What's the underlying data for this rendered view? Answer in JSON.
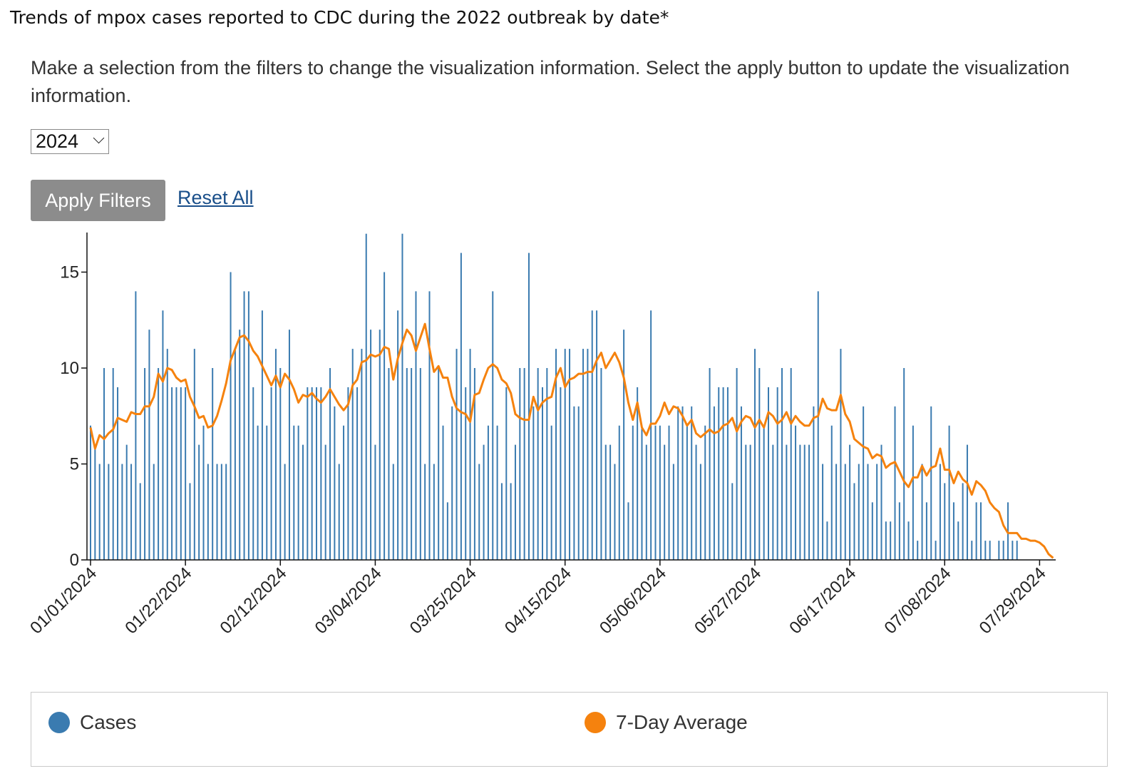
{
  "page": {
    "title": "Trends of mpox cases reported to CDC during the 2022 outbreak by date*",
    "instructions": "Make a selection from the filters to change the visualization information. Select the apply button to update the visualization information."
  },
  "filters": {
    "year_value": "2024",
    "apply_label": "Apply Filters",
    "reset_label": "Reset All"
  },
  "legend": {
    "cases_label": "Cases",
    "avg_label": "7-Day Average"
  },
  "colors": {
    "cases": "#3a7bb0",
    "average": "#f5820e"
  },
  "chart_data": {
    "type": "bar",
    "title": "Trends of mpox cases reported to CDC during the 2022 outbreak by date*",
    "xlabel": "",
    "ylabel": "",
    "ylim": [
      0,
      17
    ],
    "y_ticks": [
      0,
      5,
      10,
      15
    ],
    "x_tick_labels": [
      "01/01/2024",
      "01/22/2024",
      "02/12/2024",
      "03/04/2024",
      "03/25/2024",
      "04/15/2024",
      "05/06/2024",
      "05/27/2024",
      "06/17/2024",
      "07/08/2024",
      "07/29/2024"
    ],
    "start_date": "01/01/2024",
    "series": [
      {
        "name": "Cases",
        "type": "bar",
        "values": [
          7,
          6,
          5,
          10,
          5,
          10,
          9,
          5,
          6,
          5,
          14,
          4,
          10,
          12,
          5,
          10,
          13,
          11,
          9,
          9,
          9,
          9,
          4,
          11,
          6,
          7,
          5,
          10,
          5,
          5,
          5,
          15,
          11,
          12,
          14,
          14,
          9,
          7,
          13,
          7,
          9,
          11,
          10,
          5,
          12,
          7,
          7,
          6,
          9,
          9,
          9,
          9,
          6,
          10,
          8,
          5,
          7,
          9,
          11,
          9,
          11,
          17,
          12,
          6,
          12,
          15,
          10,
          5,
          13,
          17,
          10,
          10,
          14,
          10,
          5,
          14,
          5,
          10,
          7,
          3,
          8,
          11,
          16,
          9,
          11,
          10,
          5,
          6,
          7,
          14,
          7,
          4,
          9,
          4,
          6,
          10,
          10,
          16,
          8,
          10,
          9,
          10,
          7,
          11,
          9,
          11,
          11,
          8,
          8,
          11,
          11,
          13,
          13,
          10,
          6,
          6,
          5,
          7,
          12,
          3,
          7,
          9,
          7,
          6,
          13,
          7,
          7,
          6,
          7,
          5,
          8,
          8,
          7,
          8,
          6,
          5,
          7,
          10,
          8,
          9,
          9,
          9,
          4,
          10,
          8,
          6,
          6,
          11,
          10,
          7,
          9,
          6,
          9,
          10,
          6,
          10,
          7,
          6,
          6,
          6,
          8,
          14,
          5,
          2,
          7,
          5,
          11,
          5,
          6,
          4,
          5,
          8,
          5,
          3,
          5,
          6,
          2,
          2,
          8,
          3,
          10,
          2,
          7,
          1,
          5,
          3,
          8,
          1,
          5,
          4,
          7,
          3,
          2,
          4,
          6,
          1,
          3,
          3,
          1,
          1,
          0,
          1,
          1,
          3,
          1,
          1,
          0,
          0,
          0
        ]
      },
      {
        "name": "7-Day Average",
        "type": "line",
        "values": [
          6.9,
          5.8,
          6.5,
          6.3,
          6.6,
          6.8,
          7.4,
          7.3,
          7.2,
          7.7,
          7.6,
          7.6,
          8.0,
          8.0,
          8.5,
          9.7,
          9.3,
          10.0,
          9.9,
          9.5,
          9.3,
          9.4,
          8.5,
          8.0,
          7.4,
          7.5,
          6.9,
          7.0,
          7.5,
          8.3,
          9.2,
          10.4,
          11.0,
          11.6,
          11.7,
          11.4,
          10.9,
          10.6,
          10.1,
          9.6,
          9.1,
          9.6,
          9.0,
          9.7,
          9.4,
          8.9,
          8.2,
          8.6,
          8.5,
          8.7,
          8.4,
          8.2,
          8.5,
          8.9,
          8.5,
          8.1,
          7.8,
          8.1,
          9.1,
          9.4,
          10.3,
          10.4,
          10.7,
          10.6,
          10.7,
          11.1,
          11.0,
          9.4,
          10.5,
          11.3,
          12.0,
          11.7,
          10.9,
          11.6,
          12.3,
          11.0,
          9.8,
          10.1,
          9.5,
          9.5,
          8.5,
          7.9,
          7.7,
          7.6,
          7.2,
          8.6,
          8.7,
          9.4,
          10.0,
          10.2,
          10.0,
          9.4,
          9.2,
          8.7,
          7.6,
          7.4,
          7.3,
          7.3,
          8.5,
          7.8,
          8.2,
          8.4,
          8.5,
          9.5,
          10.0,
          9.0,
          9.4,
          9.5,
          9.7,
          9.7,
          9.8,
          9.8,
          10.4,
          10.8,
          10.0,
          10.4,
          10.8,
          10.3,
          9.5,
          8.2,
          7.3,
          8.2,
          6.9,
          6.5,
          7.1,
          7.1,
          7.5,
          8.2,
          7.6,
          8.0,
          7.9,
          7.5,
          7.0,
          7.3,
          6.6,
          6.4,
          6.6,
          6.8,
          6.6,
          6.7,
          7.0,
          7.1,
          7.4,
          6.7,
          7.2,
          7.5,
          7.4,
          6.9,
          7.3,
          6.9,
          7.7,
          7.5,
          7.1,
          7.3,
          7.7,
          7.1,
          7.5,
          7.2,
          7.0,
          7.0,
          7.4,
          7.5,
          8.4,
          7.9,
          7.8,
          7.8,
          8.6,
          7.6,
          7.2,
          6.3,
          6.1,
          5.9,
          5.8,
          5.3,
          5.5,
          5.4,
          4.8,
          5.0,
          5.1,
          4.6,
          4.1,
          3.8,
          4.3,
          4.3,
          4.9,
          4.4,
          4.8,
          4.9,
          5.8,
          4.7,
          4.7,
          4.0,
          4.6,
          4.2,
          4.0,
          3.4,
          4.1,
          3.9,
          3.6,
          3.0,
          2.7,
          2.5,
          1.8,
          1.4,
          1.4,
          1.4,
          1.1,
          1.1,
          1.0,
          1.0,
          0.9,
          0.7,
          0.3,
          0.1
        ]
      }
    ]
  }
}
